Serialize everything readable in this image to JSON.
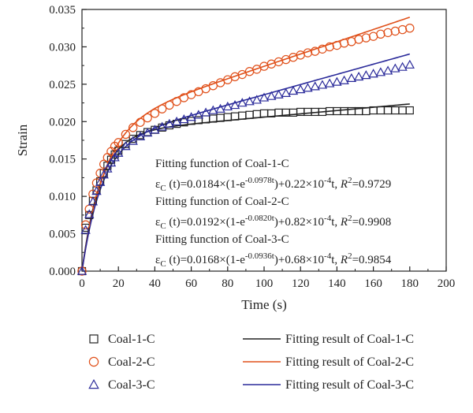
{
  "chart_data": {
    "type": "scatter",
    "xlabel": "Time (s)",
    "ylabel": "Strain",
    "xlim": [
      0,
      200
    ],
    "ylim": [
      0,
      0.035
    ],
    "xticks": [
      "0",
      "20",
      "40",
      "60",
      "80",
      "100",
      "120",
      "140",
      "160",
      "180",
      "200"
    ],
    "yticks": [
      "0.000",
      "0.005",
      "0.010",
      "0.015",
      "0.020",
      "0.025",
      "0.030",
      "0.035"
    ],
    "grid": false,
    "legend_position": "bottom",
    "series": [
      {
        "name": "Coal-1-C",
        "marker": "square",
        "color": "#222222",
        "x": [
          0,
          2,
          4,
          6,
          8,
          10,
          12,
          14,
          16,
          18,
          20,
          24,
          28,
          32,
          36,
          40,
          44,
          48,
          52,
          56,
          60,
          64,
          68,
          72,
          76,
          80,
          84,
          88,
          92,
          96,
          100,
          104,
          108,
          112,
          116,
          120,
          124,
          128,
          132,
          136,
          140,
          144,
          148,
          152,
          156,
          160,
          164,
          168,
          172,
          176,
          180
        ],
        "y": [
          0,
          0.0058,
          0.0075,
          0.0094,
          0.0108,
          0.012,
          0.0131,
          0.0141,
          0.0149,
          0.0156,
          0.0161,
          0.017,
          0.0177,
          0.0182,
          0.0186,
          0.0189,
          0.0192,
          0.0195,
          0.0197,
          0.0199,
          0.0201,
          0.0202,
          0.0203,
          0.0204,
          0.0205,
          0.0206,
          0.0207,
          0.0208,
          0.0209,
          0.021,
          0.0211,
          0.0211,
          0.0212,
          0.0212,
          0.0212,
          0.0213,
          0.0213,
          0.0213,
          0.0213,
          0.0214,
          0.0214,
          0.0214,
          0.0214,
          0.0214,
          0.0214,
          0.0215,
          0.0215,
          0.0215,
          0.0215,
          0.0215,
          0.0215
        ]
      },
      {
        "name": "Coal-2-C",
        "marker": "circle",
        "color": "#e0501a",
        "x": [
          0,
          2,
          4,
          6,
          8,
          10,
          12,
          14,
          16,
          18,
          20,
          24,
          28,
          32,
          36,
          40,
          44,
          48,
          52,
          56,
          60,
          64,
          68,
          72,
          76,
          80,
          84,
          88,
          92,
          96,
          100,
          104,
          108,
          112,
          116,
          120,
          124,
          128,
          132,
          136,
          140,
          144,
          148,
          152,
          156,
          160,
          164,
          168,
          172,
          176,
          180
        ],
        "y": [
          0,
          0.0062,
          0.0083,
          0.0103,
          0.0118,
          0.0131,
          0.0143,
          0.0152,
          0.016,
          0.0167,
          0.0172,
          0.0183,
          0.0192,
          0.0199,
          0.0205,
          0.0211,
          0.0217,
          0.0222,
          0.0227,
          0.0232,
          0.0236,
          0.024,
          0.0244,
          0.0248,
          0.0252,
          0.0256,
          0.026,
          0.0263,
          0.0267,
          0.027,
          0.0274,
          0.0277,
          0.028,
          0.0283,
          0.0286,
          0.0289,
          0.0292,
          0.0294,
          0.0297,
          0.03,
          0.0302,
          0.0305,
          0.0307,
          0.031,
          0.0312,
          0.0314,
          0.0317,
          0.0319,
          0.0321,
          0.0323,
          0.0325
        ]
      },
      {
        "name": "Coal-3-C",
        "marker": "triangle",
        "color": "#2a2a9a",
        "x": [
          0,
          2,
          4,
          6,
          8,
          10,
          12,
          14,
          16,
          18,
          20,
          24,
          28,
          32,
          36,
          40,
          44,
          48,
          52,
          56,
          60,
          64,
          68,
          72,
          76,
          80,
          84,
          88,
          92,
          96,
          100,
          104,
          108,
          112,
          116,
          120,
          124,
          128,
          132,
          136,
          140,
          144,
          148,
          152,
          156,
          160,
          164,
          168,
          172,
          176,
          180
        ],
        "y": [
          0,
          0.0055,
          0.0076,
          0.0093,
          0.0107,
          0.0119,
          0.0129,
          0.0137,
          0.0145,
          0.0152,
          0.0158,
          0.0167,
          0.0174,
          0.018,
          0.0185,
          0.0189,
          0.0193,
          0.0197,
          0.02,
          0.0203,
          0.0206,
          0.0209,
          0.0212,
          0.0215,
          0.0217,
          0.022,
          0.0222,
          0.0225,
          0.0227,
          0.0229,
          0.0232,
          0.0234,
          0.0236,
          0.0238,
          0.0241,
          0.0243,
          0.0245,
          0.0247,
          0.0249,
          0.0251,
          0.0253,
          0.0255,
          0.0258,
          0.026,
          0.0262,
          0.0264,
          0.0266,
          0.0268,
          0.0271,
          0.0273,
          0.0276
        ]
      }
    ],
    "fits": [
      {
        "name": "Fitting result of Coal-1-C",
        "color": "#222222",
        "A": 0.0184,
        "B": 0.0978,
        "C": 2.2e-05
      },
      {
        "name": "Fitting result of Coal-2-C",
        "color": "#e0501a",
        "A": 0.0192,
        "B": 0.082,
        "C": 8.2e-05
      },
      {
        "name": "Fitting result of Coal-3-C",
        "color": "#2a2a9a",
        "A": 0.0168,
        "B": 0.0936,
        "C": 6.8e-05
      }
    ],
    "annotations": [
      {
        "title": "Fitting function of Coal-1-C",
        "parts": [
          [
            "ε",
            "n"
          ],
          [
            "C",
            "sub"
          ],
          [
            " (t)=0.0184×(1-e",
            "n"
          ],
          [
            "-0.0978t",
            "sup"
          ],
          [
            ")+0.22×10",
            "n"
          ],
          [
            "-4",
            "sup"
          ],
          [
            "t, ",
            "n"
          ],
          [
            "R",
            "i"
          ],
          [
            "2",
            "sup"
          ],
          [
            "=0.9729",
            "n"
          ]
        ]
      },
      {
        "title": "Fitting function of Coal-2-C",
        "parts": [
          [
            "ε",
            "n"
          ],
          [
            "C",
            "sub"
          ],
          [
            " (t)=0.0192×(1-e",
            "n"
          ],
          [
            "-0.0820t",
            "sup"
          ],
          [
            ")+0.82×10",
            "n"
          ],
          [
            "-4",
            "sup"
          ],
          [
            "t, ",
            "n"
          ],
          [
            "R",
            "i"
          ],
          [
            "2",
            "sup"
          ],
          [
            "=0.9908",
            "n"
          ]
        ]
      },
      {
        "title": "Fitting function of Coal-3-C",
        "parts": [
          [
            "ε",
            "n"
          ],
          [
            "C",
            "sub"
          ],
          [
            " (t)=0.0168×(1-e",
            "n"
          ],
          [
            "-0.0936t",
            "sup"
          ],
          [
            ")+0.68×10",
            "n"
          ],
          [
            "-4",
            "sup"
          ],
          [
            "t, ",
            "n"
          ],
          [
            "R",
            "i"
          ],
          [
            "2",
            "sup"
          ],
          [
            "=0.9854",
            "n"
          ]
        ]
      }
    ]
  }
}
